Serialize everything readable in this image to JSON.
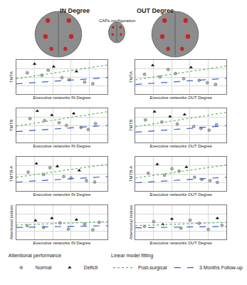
{
  "headers": {
    "left": "IN Degree",
    "right": "OUT Degree",
    "center": "CAPs configuration"
  },
  "legends": {
    "performance": {
      "title": "Attentional performance",
      "items": [
        {
          "name": "Normal",
          "color": "#b0b0b0",
          "marker": "circle"
        },
        {
          "name": "Deficit",
          "color": "#000000",
          "marker": "triangle-up"
        }
      ]
    },
    "fit": {
      "title": "Linear model fitting",
      "items": [
        {
          "name": "Post-surgical",
          "color": "#5cb85c",
          "line_style": "dot"
        },
        {
          "name": "3 Months Follow-up",
          "color": "#3a5fcd",
          "line_style": "dash"
        }
      ]
    }
  },
  "chart_data": [
    {
      "type": "scatter",
      "y_label": "TMTA",
      "x_label": "Executive networks IN Degree",
      "xlim": [
        0,
        10
      ],
      "ylim": [
        0,
        100
      ],
      "xticks": [
        0,
        2,
        4,
        6,
        8,
        10
      ],
      "yticks": [
        0,
        25,
        50,
        75,
        100
      ],
      "grid": true,
      "tick_labels": false,
      "points": {
        "x": [
          1.2,
          2.0,
          2.8,
          3.5,
          4.1,
          5.0,
          5.8,
          6.6,
          7.5,
          8.4
        ],
        "y": [
          62,
          88,
          55,
          70,
          80,
          48,
          42,
          66,
          35,
          30
        ],
        "class": [
          "Normal",
          "Deficit",
          "Normal",
          "Normal",
          "Deficit",
          "Normal",
          "Normal",
          "Deficit",
          "Normal",
          "Normal"
        ]
      },
      "fits": [
        {
          "name": "Post-surgical",
          "x": [
            0,
            10
          ],
          "y": [
            45,
            85
          ]
        },
        {
          "name": "3 Months Follow-up",
          "x": [
            0,
            10
          ],
          "y": [
            30,
            48
          ]
        }
      ]
    },
    {
      "type": "scatter",
      "y_label": "TMTA",
      "x_label": "Executive networks OUT Degree",
      "xlim": [
        0,
        10
      ],
      "ylim": [
        0,
        100
      ],
      "xticks": [
        0,
        2,
        4,
        6,
        8,
        10
      ],
      "yticks": [
        0,
        25,
        50,
        75,
        100
      ],
      "grid": true,
      "tick_labels": false,
      "points": {
        "x": [
          1.0,
          1.9,
          2.7,
          3.6,
          4.4,
          5.3,
          6.1,
          7.0,
          7.9,
          8.8
        ],
        "y": [
          58,
          84,
          50,
          72,
          60,
          45,
          78,
          40,
          33,
          28
        ],
        "class": [
          "Normal",
          "Deficit",
          "Normal",
          "Normal",
          "Normal",
          "Normal",
          "Deficit",
          "Normal",
          "Normal",
          "Normal"
        ]
      },
      "fits": [
        {
          "name": "Post-surgical",
          "x": [
            0,
            10
          ],
          "y": [
            42,
            82
          ]
        },
        {
          "name": "3 Months Follow-up",
          "x": [
            0,
            10
          ],
          "y": [
            28,
            46
          ]
        }
      ]
    },
    {
      "type": "scatter",
      "y_label": "TMTB",
      "x_label": "Executive networks IN Degree",
      "xlim": [
        0,
        10
      ],
      "ylim": [
        0,
        100
      ],
      "xticks": [
        0,
        2,
        4,
        6,
        8,
        10
      ],
      "yticks": [
        0,
        25,
        50,
        75,
        100
      ],
      "grid": true,
      "tick_labels": false,
      "points": {
        "x": [
          1.5,
          2.3,
          3.1,
          3.9,
          4.7,
          5.5,
          6.3,
          7.1,
          7.9,
          8.7
        ],
        "y": [
          70,
          92,
          64,
          80,
          58,
          50,
          85,
          44,
          38,
          55
        ],
        "class": [
          "Normal",
          "Deficit",
          "Normal",
          "Deficit",
          "Normal",
          "Normal",
          "Deficit",
          "Normal",
          "Normal",
          "Normal"
        ]
      },
      "fits": [
        {
          "name": "Post-surgical",
          "x": [
            0,
            10
          ],
          "y": [
            48,
            90
          ]
        },
        {
          "name": "3 Months Follow-up",
          "x": [
            0,
            10
          ],
          "y": [
            32,
            50
          ]
        }
      ]
    },
    {
      "type": "scatter",
      "y_label": "TMTB",
      "x_label": "Executive networks OUT Degree",
      "xlim": [
        0,
        10
      ],
      "ylim": [
        0,
        100
      ],
      "xticks": [
        0,
        2,
        4,
        6,
        8,
        10
      ],
      "yticks": [
        0,
        25,
        50,
        75,
        100
      ],
      "grid": true,
      "tick_labels": false,
      "points": {
        "x": [
          1.1,
          2.1,
          2.9,
          3.8,
          4.6,
          5.4,
          6.4,
          7.2,
          8.1,
          8.9
        ],
        "y": [
          66,
          90,
          60,
          76,
          54,
          82,
          47,
          41,
          36,
          52
        ],
        "class": [
          "Normal",
          "Deficit",
          "Normal",
          "Deficit",
          "Normal",
          "Deficit",
          "Normal",
          "Normal",
          "Normal",
          "Normal"
        ]
      },
      "fits": [
        {
          "name": "Post-surgical",
          "x": [
            0,
            10
          ],
          "y": [
            46,
            88
          ]
        },
        {
          "name": "3 Months Follow-up",
          "x": [
            0,
            10
          ],
          "y": [
            30,
            49
          ]
        }
      ]
    },
    {
      "type": "scatter",
      "y_label": "TMTB-A",
      "x_label": "Executive networks IN Degree",
      "xlim": [
        0,
        10
      ],
      "ylim": [
        0,
        100
      ],
      "xticks": [
        0,
        2,
        4,
        6,
        8,
        10
      ],
      "yticks": [
        0,
        25,
        50,
        75,
        100
      ],
      "grid": true,
      "tick_labels": false,
      "points": {
        "x": [
          1.3,
          2.2,
          3.0,
          3.7,
          4.5,
          5.2,
          6.0,
          6.9,
          7.7,
          8.6
        ],
        "y": [
          55,
          80,
          48,
          68,
          72,
          42,
          38,
          60,
          30,
          26
        ],
        "class": [
          "Normal",
          "Deficit",
          "Normal",
          "Normal",
          "Deficit",
          "Normal",
          "Normal",
          "Deficit",
          "Normal",
          "Normal"
        ]
      },
      "fits": [
        {
          "name": "Post-surgical",
          "x": [
            0,
            10
          ],
          "y": [
            40,
            78
          ]
        },
        {
          "name": "3 Months Follow-up",
          "x": [
            0,
            10
          ],
          "y": [
            26,
            42
          ]
        }
      ]
    },
    {
      "type": "scatter",
      "y_label": "TMTB-A",
      "x_label": "Executive networks OUT Degree",
      "xlim": [
        0,
        10
      ],
      "ylim": [
        0,
        100
      ],
      "xticks": [
        0,
        2,
        4,
        6,
        8,
        10
      ],
      "yticks": [
        0,
        25,
        50,
        75,
        100
      ],
      "grid": true,
      "tick_labels": false,
      "points": {
        "x": [
          1.4,
          2.4,
          3.2,
          4.0,
          4.8,
          5.6,
          6.5,
          7.3,
          8.2,
          9.0
        ],
        "y": [
          52,
          78,
          46,
          65,
          58,
          70,
          40,
          34,
          30,
          25
        ],
        "class": [
          "Normal",
          "Deficit",
          "Normal",
          "Normal",
          "Normal",
          "Deficit",
          "Normal",
          "Normal",
          "Normal",
          "Normal"
        ]
      },
      "fits": [
        {
          "name": "Post-surgical",
          "x": [
            0,
            10
          ],
          "y": [
            38,
            76
          ]
        },
        {
          "name": "3 Months Follow-up",
          "x": [
            0,
            10
          ],
          "y": [
            24,
            40
          ]
        }
      ]
    },
    {
      "type": "scatter",
      "y_label": "Attentional indices",
      "x_label": "Executive networks IN Degree",
      "xlim": [
        0,
        10
      ],
      "ylim": [
        0,
        100
      ],
      "xticks": [
        0,
        2,
        4,
        6,
        8,
        10
      ],
      "yticks": [
        0,
        25,
        50,
        75,
        100
      ],
      "grid": true,
      "tick_labels": false,
      "points": {
        "x": [
          1.2,
          2.1,
          3.0,
          3.9,
          4.8,
          5.7,
          6.6,
          7.5,
          8.4,
          9.1
        ],
        "y": [
          40,
          55,
          35,
          62,
          48,
          30,
          58,
          45,
          28,
          50
        ],
        "class": [
          "Normal",
          "Deficit",
          "Normal",
          "Deficit",
          "Normal",
          "Normal",
          "Deficit",
          "Normal",
          "Normal",
          "Normal"
        ]
      },
      "fits": [
        {
          "name": "Post-surgical",
          "x": [
            0,
            10
          ],
          "y": [
            42,
            52
          ]
        },
        {
          "name": "3 Months Follow-up",
          "x": [
            0,
            10
          ],
          "y": [
            35,
            40
          ]
        }
      ]
    },
    {
      "type": "scatter",
      "y_label": "Attentional indices",
      "x_label": "Executive networks OUT Degree",
      "xlim": [
        0,
        10
      ],
      "ylim": [
        0,
        100
      ],
      "xticks": [
        0,
        2,
        4,
        6,
        8,
        10
      ],
      "yticks": [
        0,
        25,
        50,
        75,
        100
      ],
      "grid": true,
      "tick_labels": false,
      "points": {
        "x": [
          1.0,
          2.0,
          3.0,
          4.0,
          5.0,
          6.0,
          7.0,
          8.0,
          9.0,
          9.5
        ],
        "y": [
          38,
          52,
          44,
          60,
          33,
          56,
          47,
          29,
          62,
          41
        ],
        "class": [
          "Normal",
          "Normal",
          "Deficit",
          "Deficit",
          "Normal",
          "Normal",
          "Normal",
          "Normal",
          "Deficit",
          "Normal"
        ]
      },
      "fits": [
        {
          "name": "Post-surgical",
          "x": [
            0,
            10
          ],
          "y": [
            40,
            50
          ]
        },
        {
          "name": "3 Months Follow-up",
          "x": [
            0,
            10
          ],
          "y": [
            34,
            38
          ]
        }
      ]
    }
  ]
}
